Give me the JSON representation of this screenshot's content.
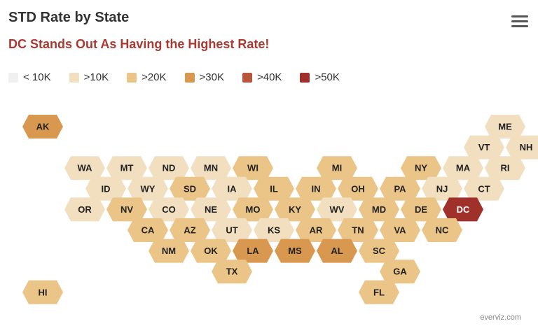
{
  "chart_data": {
    "type": "tilemap",
    "title": "STD Rate by State",
    "subtitle": "DC Stands Out As Having the Highest Rate!",
    "legend": [
      {
        "label": "< 10K",
        "color": "#f0f0f0"
      },
      {
        "label": ">10K",
        "color": "#f2dfc0"
      },
      {
        "label": ">20K",
        "color": "#ebc487"
      },
      {
        "label": ">30K",
        "color": "#d9984f"
      },
      {
        "label": ">40K",
        "color": "#b8553b"
      },
      {
        "label": ">50K",
        "color": "#a0302a"
      }
    ],
    "tiles": [
      {
        "state": "AK",
        "row": 0,
        "col": 0,
        "class": 3
      },
      {
        "state": "ME",
        "row": 0,
        "col": 11,
        "class": 1
      },
      {
        "state": "VT",
        "row": 1,
        "col": 10,
        "class": 1
      },
      {
        "state": "NH",
        "row": 1,
        "col": 11,
        "class": 1
      },
      {
        "state": "WA",
        "row": 2,
        "col": 1,
        "class": 1
      },
      {
        "state": "MT",
        "row": 2,
        "col": 2,
        "class": 1
      },
      {
        "state": "ND",
        "row": 2,
        "col": 3,
        "class": 1
      },
      {
        "state": "MN",
        "row": 2,
        "col": 4,
        "class": 1
      },
      {
        "state": "WI",
        "row": 2,
        "col": 5,
        "class": 2
      },
      {
        "state": "MI",
        "row": 2,
        "col": 7,
        "class": 2
      },
      {
        "state": "NY",
        "row": 2,
        "col": 9,
        "class": 2
      },
      {
        "state": "MA",
        "row": 2,
        "col": 10,
        "class": 1
      },
      {
        "state": "RI",
        "row": 2,
        "col": 11,
        "class": 1
      },
      {
        "state": "ID",
        "row": 3,
        "col": 1,
        "class": 1
      },
      {
        "state": "WY",
        "row": 3,
        "col": 2,
        "class": 1
      },
      {
        "state": "SD",
        "row": 3,
        "col": 3,
        "class": 2
      },
      {
        "state": "IA",
        "row": 3,
        "col": 4,
        "class": 1
      },
      {
        "state": "IL",
        "row": 3,
        "col": 5,
        "class": 2
      },
      {
        "state": "IN",
        "row": 3,
        "col": 6,
        "class": 2
      },
      {
        "state": "OH",
        "row": 3,
        "col": 7,
        "class": 2
      },
      {
        "state": "PA",
        "row": 3,
        "col": 8,
        "class": 2
      },
      {
        "state": "NJ",
        "row": 3,
        "col": 9,
        "class": 1
      },
      {
        "state": "CT",
        "row": 3,
        "col": 10,
        "class": 1
      },
      {
        "state": "OR",
        "row": 4,
        "col": 1,
        "class": 1
      },
      {
        "state": "NV",
        "row": 4,
        "col": 2,
        "class": 2
      },
      {
        "state": "CO",
        "row": 4,
        "col": 3,
        "class": 1
      },
      {
        "state": "NE",
        "row": 4,
        "col": 4,
        "class": 1
      },
      {
        "state": "MO",
        "row": 4,
        "col": 5,
        "class": 2
      },
      {
        "state": "KY",
        "row": 4,
        "col": 6,
        "class": 2
      },
      {
        "state": "WV",
        "row": 4,
        "col": 7,
        "class": 1
      },
      {
        "state": "MD",
        "row": 4,
        "col": 8,
        "class": 2
      },
      {
        "state": "DE",
        "row": 4,
        "col": 9,
        "class": 2
      },
      {
        "state": "DC",
        "row": 4,
        "col": 10,
        "class": 5
      },
      {
        "state": "CA",
        "row": 5,
        "col": 2,
        "class": 2
      },
      {
        "state": "AZ",
        "row": 5,
        "col": 3,
        "class": 2
      },
      {
        "state": "UT",
        "row": 5,
        "col": 4,
        "class": 1
      },
      {
        "state": "KS",
        "row": 5,
        "col": 5,
        "class": 1
      },
      {
        "state": "AR",
        "row": 5,
        "col": 6,
        "class": 2
      },
      {
        "state": "TN",
        "row": 5,
        "col": 7,
        "class": 2
      },
      {
        "state": "VA",
        "row": 5,
        "col": 8,
        "class": 2
      },
      {
        "state": "NC",
        "row": 5,
        "col": 9,
        "class": 2
      },
      {
        "state": "NM",
        "row": 6,
        "col": 3,
        "class": 2
      },
      {
        "state": "OK",
        "row": 6,
        "col": 4,
        "class": 2
      },
      {
        "state": "LA",
        "row": 6,
        "col": 5,
        "class": 3
      },
      {
        "state": "MS",
        "row": 6,
        "col": 6,
        "class": 3
      },
      {
        "state": "AL",
        "row": 6,
        "col": 7,
        "class": 3
      },
      {
        "state": "SC",
        "row": 6,
        "col": 8,
        "class": 2
      },
      {
        "state": "TX",
        "row": 7,
        "col": 4,
        "class": 2
      },
      {
        "state": "GA",
        "row": 7,
        "col": 8,
        "class": 2
      },
      {
        "state": "HI",
        "row": 8,
        "col": 0,
        "class": 2
      },
      {
        "state": "FL",
        "row": 8,
        "col": 8,
        "class": 2
      }
    ]
  },
  "menu": {
    "icon": "hamburger-menu-icon"
  },
  "credit": "everviz.com"
}
